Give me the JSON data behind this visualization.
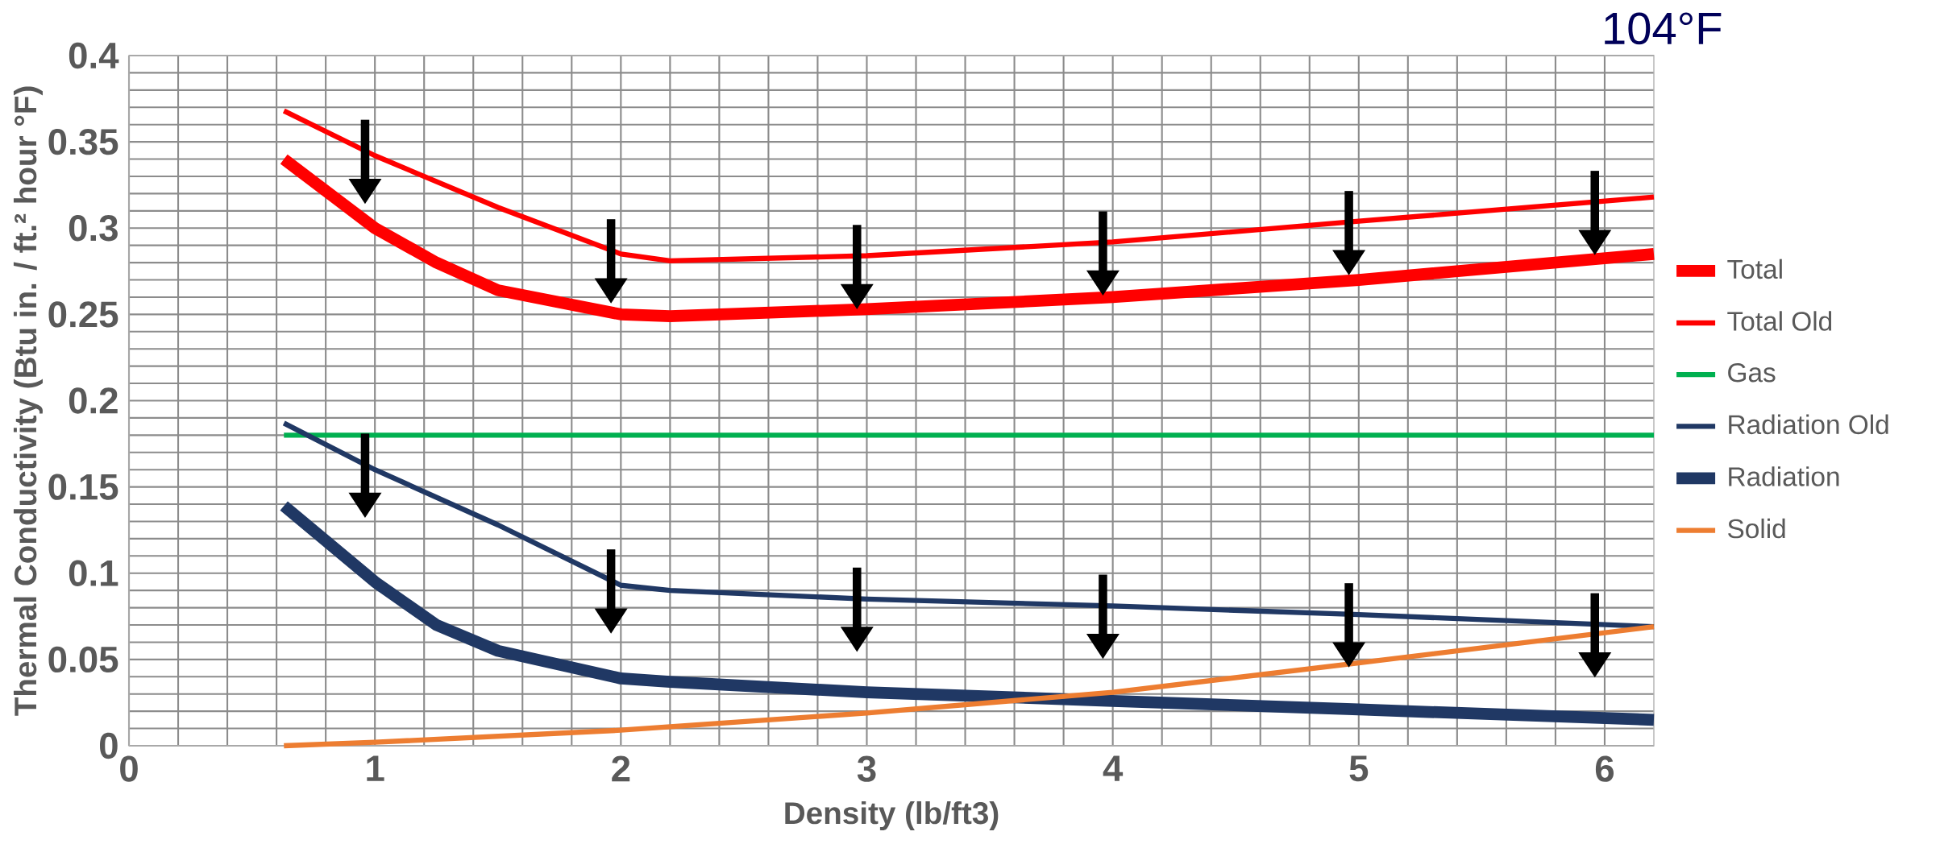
{
  "chart_data": {
    "type": "line",
    "title": "104°F",
    "xlabel": "Density (lb/ft3)",
    "ylabel": "Thermal Conductivity (Btu in. / ft.² hour °F)",
    "xlim": [
      0,
      6.2
    ],
    "xticks": [
      0,
      1,
      2,
      3,
      4,
      5,
      6
    ],
    "ylim": [
      0,
      0.4
    ],
    "yticks": [
      0,
      0.05,
      0.1,
      0.15,
      0.2,
      0.25,
      0.3,
      0.35,
      0.4
    ],
    "grid": true,
    "legend": "right",
    "marker": "none",
    "series": [
      {
        "name": "Total",
        "color": "#ff0000",
        "x": [
          0.63,
          1,
          1.25,
          1.5,
          2,
          2.2,
          3,
          4,
          5,
          6.2
        ],
        "values": [
          0.34,
          0.3,
          0.28,
          0.264,
          0.25,
          0.249,
          0.253,
          0.26,
          0.27,
          0.285
        ]
      },
      {
        "name": "Total Old",
        "color": "#ff0000",
        "x": [
          0.63,
          1,
          1.5,
          2,
          2.2,
          3,
          4,
          5,
          6.2
        ],
        "values": [
          0.368,
          0.342,
          0.312,
          0.285,
          0.281,
          0.284,
          0.292,
          0.304,
          0.318
        ]
      },
      {
        "name": "Gas",
        "color": "#00b050",
        "x": [
          0.63,
          6.2
        ],
        "values": [
          0.18,
          0.18
        ]
      },
      {
        "name": "Radiation Old",
        "color": "#203864",
        "x": [
          0.63,
          1,
          1.5,
          2,
          2.2,
          3,
          4,
          5,
          6.2
        ],
        "values": [
          0.187,
          0.16,
          0.128,
          0.093,
          0.09,
          0.085,
          0.081,
          0.076,
          0.069
        ]
      },
      {
        "name": "Radiation",
        "color": "#203864",
        "x": [
          0.63,
          1,
          1.25,
          1.5,
          2,
          2.2,
          3,
          4,
          5,
          6.2
        ],
        "values": [
          0.139,
          0.095,
          0.07,
          0.055,
          0.039,
          0.037,
          0.031,
          0.026,
          0.021,
          0.015
        ]
      },
      {
        "name": "Solid",
        "color": "#ed7d31",
        "x": [
          0.63,
          1,
          2,
          3,
          4,
          5,
          6.2
        ],
        "values": [
          0,
          0.002,
          0.009,
          0.019,
          0.031,
          0.048,
          0.069
        ]
      }
    ]
  }
}
